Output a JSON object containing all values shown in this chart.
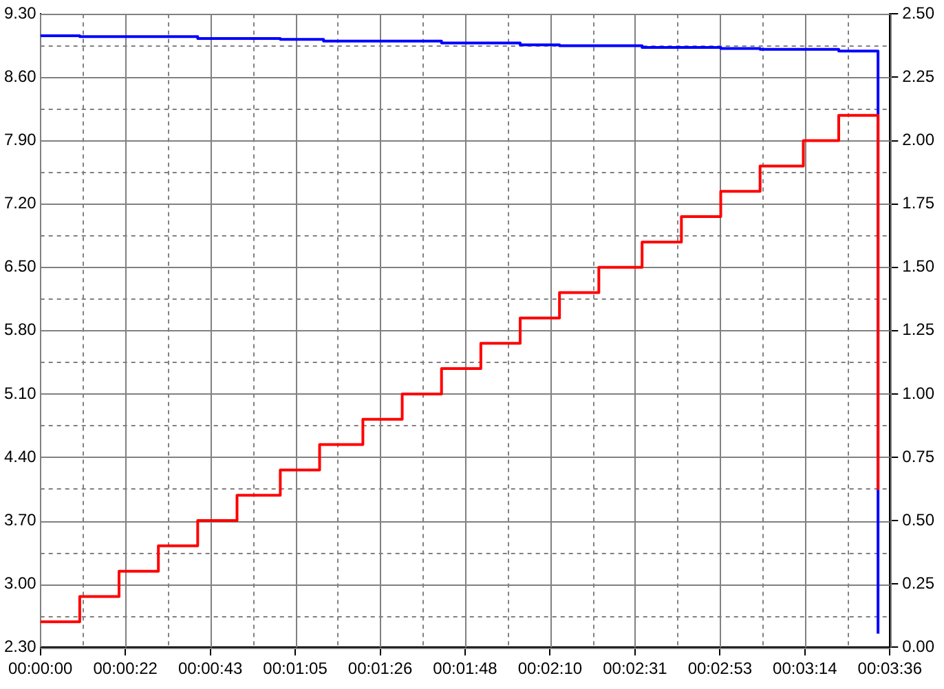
{
  "chart_data": {
    "type": "step",
    "grid": true,
    "xlim": [
      0,
      216
    ],
    "xticks": [
      {
        "value": 0,
        "label": "00:00:00"
      },
      {
        "value": 10.8,
        "label": null
      },
      {
        "value": 21.6,
        "label": "00:00:22"
      },
      {
        "value": 32.4,
        "label": null
      },
      {
        "value": 43.2,
        "label": "00:00:43"
      },
      {
        "value": 54,
        "label": null
      },
      {
        "value": 64.8,
        "label": "00:01:05"
      },
      {
        "value": 75.6,
        "label": null
      },
      {
        "value": 86.4,
        "label": "00:01:26"
      },
      {
        "value": 97.2,
        "label": null
      },
      {
        "value": 108,
        "label": "00:01:48"
      },
      {
        "value": 118.8,
        "label": null
      },
      {
        "value": 129.6,
        "label": "00:02:10"
      },
      {
        "value": 140.4,
        "label": null
      },
      {
        "value": 151.2,
        "label": "00:02:31"
      },
      {
        "value": 162,
        "label": null
      },
      {
        "value": 172.8,
        "label": "00:02:53"
      },
      {
        "value": 183.6,
        "label": null
      },
      {
        "value": 194.4,
        "label": "00:03:14"
      },
      {
        "value": 205.2,
        "label": null
      },
      {
        "value": 216,
        "label": "00:03:36"
      }
    ],
    "ylim": [
      2.3,
      9.3
    ],
    "yticks": [
      {
        "value": 2.3,
        "label": "2.30"
      },
      {
        "value": 2.65,
        "label": null
      },
      {
        "value": 3.0,
        "label": "3.00"
      },
      {
        "value": 3.35,
        "label": null
      },
      {
        "value": 3.7,
        "label": "3.70"
      },
      {
        "value": 4.05,
        "label": null
      },
      {
        "value": 4.4,
        "label": "4.40"
      },
      {
        "value": 4.75,
        "label": null
      },
      {
        "value": 5.1,
        "label": "5.10"
      },
      {
        "value": 5.45,
        "label": null
      },
      {
        "value": 5.8,
        "label": "5.80"
      },
      {
        "value": 6.15,
        "label": null
      },
      {
        "value": 6.5,
        "label": "6.50"
      },
      {
        "value": 6.85,
        "label": null
      },
      {
        "value": 7.2,
        "label": "7.20"
      },
      {
        "value": 7.55,
        "label": null
      },
      {
        "value": 7.9,
        "label": "7.90"
      },
      {
        "value": 8.25,
        "label": null
      },
      {
        "value": 8.6,
        "label": "8.60"
      },
      {
        "value": 8.95,
        "label": null
      },
      {
        "value": 9.3,
        "label": "9.30"
      }
    ],
    "y2lim": [
      0,
      2.5
    ],
    "y2ticks": [
      {
        "value": 0,
        "label": "0.00"
      },
      {
        "value": 0.25,
        "label": "0.25"
      },
      {
        "value": 0.5,
        "label": "0.50"
      },
      {
        "value": 0.75,
        "label": "0.75"
      },
      {
        "value": 1,
        "label": "1.00"
      },
      {
        "value": 1.25,
        "label": "1.25"
      },
      {
        "value": 1.5,
        "label": "1.50"
      },
      {
        "value": 1.75,
        "label": "1.75"
      },
      {
        "value": 2,
        "label": "2.00"
      },
      {
        "value": 2.25,
        "label": "2.25"
      },
      {
        "value": 2.5,
        "label": "2.50"
      }
    ],
    "series": [
      {
        "color": "#0000ff",
        "x": [
          0,
          10,
          40,
          61,
          72,
          102,
          122,
          132,
          153,
          173,
          183,
          203,
          213
        ],
        "values": [
          9.06,
          9.05,
          9.03,
          9.02,
          9.0,
          8.98,
          8.96,
          8.95,
          8.93,
          8.92,
          8.91,
          8.89,
          2.45
        ]
      },
      {
        "color": "#ff0000",
        "axis": "y2",
        "x": [
          0,
          10,
          20,
          30,
          40,
          50,
          61,
          71,
          82,
          92,
          102,
          112,
          122,
          132,
          142,
          153,
          163,
          173,
          183,
          194,
          203,
          213
        ],
        "values": [
          0.1,
          0.2,
          0.3,
          0.4,
          0.5,
          0.6,
          0.7,
          0.8,
          0.9,
          1.0,
          1.1,
          1.2,
          1.3,
          1.4,
          1.5,
          1.6,
          1.7,
          1.8,
          1.9,
          2.0,
          2.1,
          0.62
        ]
      }
    ]
  }
}
